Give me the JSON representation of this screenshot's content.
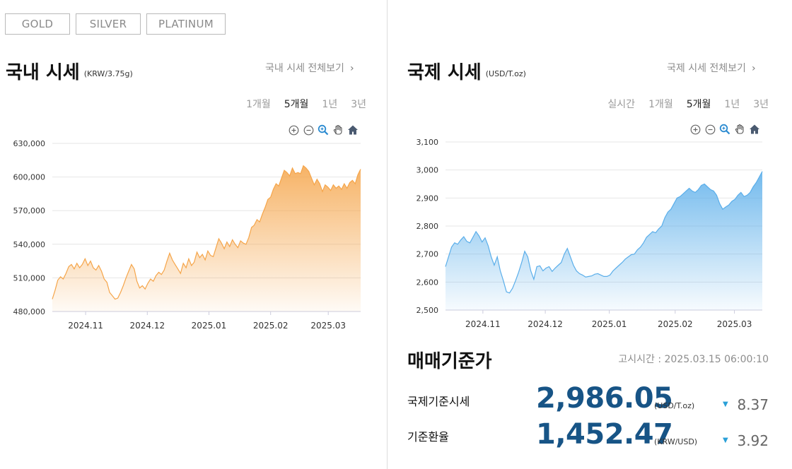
{
  "tabs": [
    {
      "label": "GOLD",
      "active": true
    },
    {
      "label": "SILVER",
      "active": false
    },
    {
      "label": "PLATINUM",
      "active": false
    }
  ],
  "domestic": {
    "title": "국내 시세",
    "unit": "(KRW/3.75g)",
    "more": "국내 시세 전체보기",
    "periods": [
      {
        "label": "1개월",
        "active": false
      },
      {
        "label": "5개월",
        "active": true
      },
      {
        "label": "1년",
        "active": false
      },
      {
        "label": "3년",
        "active": false
      }
    ]
  },
  "international": {
    "title": "국제 시세",
    "unit": "(USD/T.oz)",
    "more": "국제 시세 전체보기",
    "periods": [
      {
        "label": "실시간",
        "active": false
      },
      {
        "label": "1개월",
        "active": false
      },
      {
        "label": "5개월",
        "active": true
      },
      {
        "label": "1년",
        "active": false
      },
      {
        "label": "3년",
        "active": false
      }
    ]
  },
  "chart_tools": [
    "zoom-in-icon",
    "zoom-out-icon",
    "magnifier-icon",
    "hand-pan-icon",
    "home-icon"
  ],
  "chart_data": [
    {
      "type": "area",
      "color": "#f5a54a",
      "ylim": [
        480000,
        630000
      ],
      "yticks": [
        480000,
        510000,
        540000,
        570000,
        600000,
        630000
      ],
      "ytick_labels": [
        "480,000",
        "510,000",
        "540,000",
        "570,000",
        "600,000",
        "630,000"
      ],
      "xticks": [
        "2024.11",
        "2024.12",
        "2025.01",
        "2025.02",
        "2025.03"
      ],
      "xtick_pos": [
        0.108,
        0.308,
        0.508,
        0.708,
        0.895
      ],
      "y": [
        491000,
        499000,
        508000,
        511000,
        509000,
        514000,
        520000,
        522000,
        518000,
        523000,
        519000,
        522000,
        527000,
        521000,
        525000,
        519000,
        517000,
        521000,
        516000,
        509000,
        506000,
        497000,
        494000,
        491000,
        492000,
        497000,
        503000,
        510000,
        516000,
        522000,
        518000,
        507000,
        501000,
        503000,
        500000,
        505000,
        509000,
        507000,
        512000,
        515000,
        513000,
        517000,
        525000,
        532000,
        526000,
        522000,
        518000,
        514000,
        523000,
        519000,
        527000,
        521000,
        524000,
        533000,
        528000,
        531000,
        526000,
        534000,
        530000,
        529000,
        537000,
        545000,
        541000,
        536000,
        542000,
        538000,
        544000,
        540000,
        537000,
        543000,
        541000,
        540000,
        546000,
        555000,
        557000,
        562000,
        560000,
        567000,
        573000,
        580000,
        582000,
        589000,
        594000,
        592000,
        599000,
        606000,
        604000,
        601000,
        608000,
        603000,
        604000,
        603000,
        610000,
        608000,
        605000,
        599000,
        593000,
        598000,
        594000,
        587000,
        593000,
        591000,
        588000,
        593000,
        590000,
        592000,
        589000,
        594000,
        590000,
        595000,
        597000,
        594000,
        602000,
        607000
      ]
    },
    {
      "type": "area",
      "color": "#5aaeea",
      "ylim": [
        2500,
        3100
      ],
      "yticks": [
        2500,
        2600,
        2700,
        2800,
        2900,
        3000,
        3100
      ],
      "ytick_labels": [
        "2,500",
        "2,600",
        "2,700",
        "2,800",
        "2,900",
        "3,000",
        "3,100"
      ],
      "xticks": [
        "2024.11",
        "2024.12",
        "2025.01",
        "2025.02",
        "2025.03"
      ],
      "xtick_pos": [
        0.118,
        0.315,
        0.517,
        0.725,
        0.912
      ],
      "y": [
        2655,
        2690,
        2725,
        2740,
        2735,
        2750,
        2762,
        2745,
        2740,
        2760,
        2780,
        2765,
        2743,
        2758,
        2730,
        2690,
        2660,
        2690,
        2640,
        2605,
        2565,
        2561,
        2578,
        2605,
        2635,
        2670,
        2710,
        2690,
        2640,
        2610,
        2655,
        2658,
        2640,
        2650,
        2655,
        2638,
        2650,
        2660,
        2670,
        2700,
        2720,
        2690,
        2660,
        2640,
        2630,
        2625,
        2618,
        2620,
        2622,
        2628,
        2630,
        2625,
        2620,
        2620,
        2625,
        2640,
        2650,
        2660,
        2670,
        2682,
        2690,
        2698,
        2700,
        2715,
        2725,
        2740,
        2760,
        2770,
        2780,
        2776,
        2790,
        2800,
        2830,
        2850,
        2860,
        2880,
        2900,
        2905,
        2915,
        2925,
        2935,
        2925,
        2920,
        2930,
        2945,
        2950,
        2940,
        2930,
        2925,
        2910,
        2880,
        2860,
        2868,
        2875,
        2888,
        2895,
        2910,
        2920,
        2905,
        2910,
        2920,
        2940,
        2955,
        2975,
        2995
      ]
    }
  ],
  "base_rate": {
    "title": "매매기준가",
    "notice_time": "고시시간 : 2025.03.15 06:00:10",
    "rows": [
      {
        "label": "국제기준시세",
        "value": "2,986.05",
        "unit": "(USD/T.oz)",
        "direction": "down",
        "change": "8.37"
      },
      {
        "label": "기준환율",
        "value": "1,452.47",
        "unit": "(KRW/USD)",
        "direction": "down",
        "change": "3.92"
      }
    ]
  }
}
